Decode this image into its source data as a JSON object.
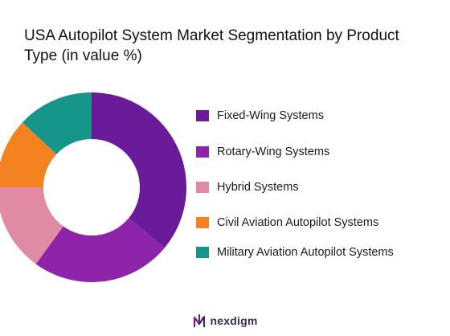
{
  "title": "USA Autopilot System Market Segmentation by Product Type (in value %)",
  "brand": {
    "name": "nexdigm",
    "logo_icon": "nexdigm-logo-icon"
  },
  "colors": {
    "fixed_wing": "#6A1B9A",
    "rotary_wing": "#8E24AA",
    "hybrid": "#E08BA3",
    "civil": "#F58220",
    "military": "#16968A"
  },
  "chart_data": {
    "type": "donut",
    "title": "USA Autopilot System Market Segmentation by Product Type (in value %)",
    "legend_position": "right",
    "series": [
      {
        "name": "Fixed-Wing Systems",
        "value": 36,
        "color": "#6A1B9A"
      },
      {
        "name": "Rotary-Wing Systems",
        "value": 24,
        "color": "#8E24AA"
      },
      {
        "name": "Hybrid Systems",
        "value": 15,
        "color": "#E08BA3"
      },
      {
        "name": "Civil Aviation Autopilot Systems",
        "value": 12,
        "color": "#F58220"
      },
      {
        "name": "Military Aviation Autopilot Systems",
        "value": 13,
        "color": "#16968A"
      }
    ]
  }
}
